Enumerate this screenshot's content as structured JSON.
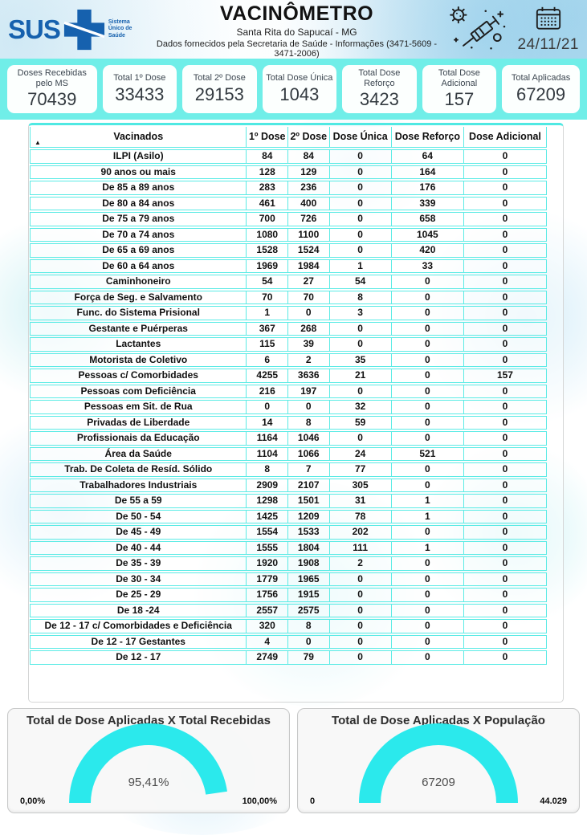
{
  "header": {
    "title": "VACINÔMETRO",
    "subtitle": "Santa Rita do Sapucaí - MG",
    "info_line": "Dados fornecidos pela Secretaria de Saúde - Informações (3471-5609 - 3471-2006)",
    "date": "24/11/21",
    "logo_text": "SUS",
    "logo_tagline": "Sistema Único de Saúde"
  },
  "summary_cards": [
    {
      "label": "Doses Recebidas pelo MS",
      "value": "70439"
    },
    {
      "label": "Total 1º Dose",
      "value": "33433"
    },
    {
      "label": "Total 2º Dose",
      "value": "29153"
    },
    {
      "label": "Total Dose Única",
      "value": "1043"
    },
    {
      "label": "Total Dose Reforço",
      "value": "3423"
    },
    {
      "label": "Total Dose Adicional",
      "value": "157"
    },
    {
      "label": "Total Aplicadas",
      "value": "67209"
    }
  ],
  "colors": {
    "band_cyan": "#70EEE8",
    "grid_cyan": "#5BEBE5",
    "gauge_arc": "#2BE9EC",
    "sus_blue": "#1661AE"
  },
  "chart_data": [
    {
      "type": "table",
      "sort_indicator": "▲",
      "columns": [
        "Vacinados",
        "1º Dose",
        "2º Dose",
        "Dose Única",
        "Dose Reforço",
        "Dose Adicional"
      ],
      "rows": [
        [
          "ILPI (Asilo)",
          84,
          84,
          0,
          64,
          0
        ],
        [
          "90 anos ou mais",
          128,
          129,
          0,
          164,
          0
        ],
        [
          "De 85 a 89 anos",
          283,
          236,
          0,
          176,
          0
        ],
        [
          "De 80 a 84 anos",
          461,
          400,
          0,
          339,
          0
        ],
        [
          "De 75 a 79 anos",
          700,
          726,
          0,
          658,
          0
        ],
        [
          "De 70 a 74 anos",
          1080,
          1100,
          0,
          1045,
          0
        ],
        [
          "De 65 a 69 anos",
          1528,
          1524,
          0,
          420,
          0
        ],
        [
          "De 60 a 64 anos",
          1969,
          1984,
          1,
          33,
          0
        ],
        [
          "Caminhoneiro",
          54,
          27,
          54,
          0,
          0
        ],
        [
          "Força de Seg. e Salvamento",
          70,
          70,
          8,
          0,
          0
        ],
        [
          "Func. do Sistema Prisional",
          1,
          0,
          3,
          0,
          0
        ],
        [
          "Gestante e Puérperas",
          367,
          268,
          0,
          0,
          0
        ],
        [
          "Lactantes",
          115,
          39,
          0,
          0,
          0
        ],
        [
          "Motorista de Coletivo",
          6,
          2,
          35,
          0,
          0
        ],
        [
          "Pessoas c/ Comorbidades",
          4255,
          3636,
          21,
          0,
          157
        ],
        [
          "Pessoas com Deficiência",
          216,
          197,
          0,
          0,
          0
        ],
        [
          "Pessoas em Sit. de Rua",
          0,
          0,
          32,
          0,
          0
        ],
        [
          "Privadas de Liberdade",
          14,
          8,
          59,
          0,
          0
        ],
        [
          "Profissionais da Educação",
          1164,
          1046,
          0,
          0,
          0
        ],
        [
          "Área da Saúde",
          1104,
          1066,
          24,
          521,
          0
        ],
        [
          "Trab. De Coleta de Resíd. Sólido",
          8,
          7,
          77,
          0,
          0
        ],
        [
          "Trabalhadores Industriais",
          2909,
          2107,
          305,
          0,
          0
        ],
        [
          "De 55 a 59",
          1298,
          1501,
          31,
          1,
          0
        ],
        [
          "De 50 - 54",
          1425,
          1209,
          78,
          1,
          0
        ],
        [
          "De 45 - 49",
          1554,
          1533,
          202,
          0,
          0
        ],
        [
          "De 40 - 44",
          1555,
          1804,
          111,
          1,
          0
        ],
        [
          "De 35 - 39",
          1920,
          1908,
          2,
          0,
          0
        ],
        [
          "De 30 - 34",
          1779,
          1965,
          0,
          0,
          0
        ],
        [
          "De 25 - 29",
          1756,
          1915,
          0,
          0,
          0
        ],
        [
          "De 18 -24",
          2557,
          2575,
          0,
          0,
          0
        ],
        [
          "De 12 - 17 c/ Comorbidades e Deficiência",
          320,
          8,
          0,
          0,
          0
        ],
        [
          "De 12 - 17 Gestantes",
          4,
          0,
          0,
          0,
          0
        ],
        [
          "De 12 - 17",
          2749,
          79,
          0,
          0,
          0
        ]
      ]
    },
    {
      "type": "gauge",
      "title": "Total de Dose Aplicadas X Total Recebidas",
      "value": 95.41,
      "min": 0,
      "max": 100,
      "value_label": "95,41%",
      "min_label": "0,00%",
      "max_label": "100,00%"
    },
    {
      "type": "gauge",
      "title": "Total de Dose Aplicadas X População",
      "value": 67209,
      "min": 0,
      "max": 44029,
      "value_label": "67209",
      "min_label": "0",
      "max_label": "44.029"
    }
  ]
}
